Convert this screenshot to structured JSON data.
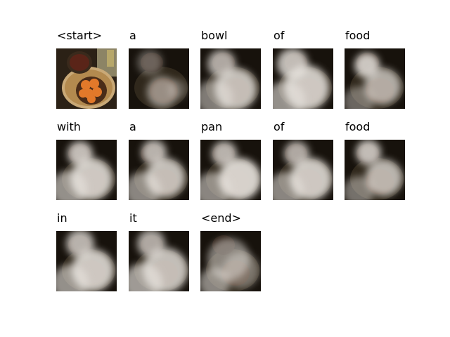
{
  "tokens": [
    "<start>",
    "a",
    "bowl",
    "of",
    "food",
    "with",
    "a",
    "pan",
    "of",
    "food",
    "in",
    "it",
    "<end>"
  ],
  "colors": {
    "background": "#ffffff",
    "text": "#000000",
    "dark_tone": "#1a1510",
    "attention_tone": "#e8e4df",
    "fruit_orange": "#e2792a"
  }
}
